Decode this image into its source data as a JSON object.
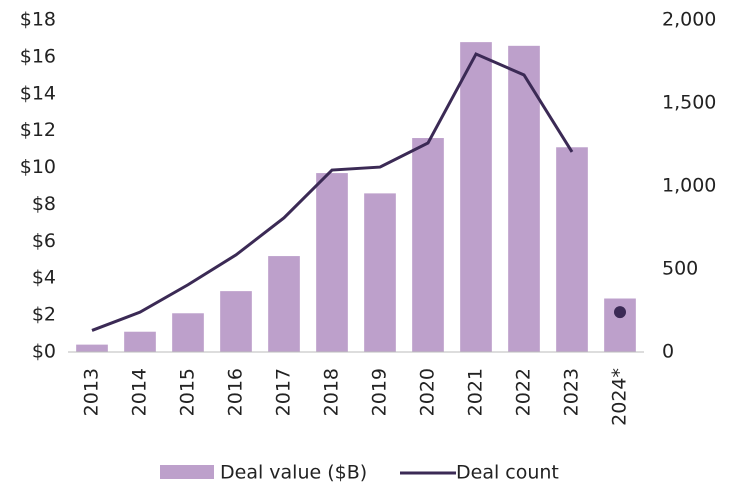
{
  "chart_data": {
    "type": "bar",
    "categories": [
      "2013",
      "2014",
      "2015",
      "2016",
      "2017",
      "2018",
      "2019",
      "2020",
      "2021",
      "2022",
      "2023",
      "2024*"
    ],
    "series": [
      {
        "name": "Deal value ($B)",
        "type": "bar",
        "color": "#bda0cb",
        "axis": "y",
        "values": [
          0.4,
          1.1,
          2.1,
          3.3,
          5.2,
          9.7,
          8.6,
          11.6,
          16.8,
          16.6,
          11.1,
          2.9
        ]
      },
      {
        "name": "Deal count",
        "type": "line",
        "color": "#3b2a55",
        "axis": "y2",
        "values": [
          130,
          240,
          405,
          585,
          808,
          1096,
          1114,
          1259,
          1795,
          1669,
          1205,
          null
        ],
        "marker_values": [
          null,
          null,
          null,
          null,
          null,
          null,
          null,
          null,
          null,
          null,
          null,
          240
        ]
      }
    ],
    "ylim": [
      0,
      18
    ],
    "yticks": [
      {
        "value": 0,
        "label": "$0"
      },
      {
        "value": 2,
        "label": "$2"
      },
      {
        "value": 4,
        "label": "$4"
      },
      {
        "value": 6,
        "label": "$6"
      },
      {
        "value": 8,
        "label": "$8"
      },
      {
        "value": 10,
        "label": "$10"
      },
      {
        "value": 12,
        "label": "$12"
      },
      {
        "value": 14,
        "label": "$14"
      },
      {
        "value": 16,
        "label": "$16"
      },
      {
        "value": 18,
        "label": "$18"
      }
    ],
    "y2lim": [
      0,
      2000
    ],
    "y2ticks": [
      0,
      500,
      {
        "value": 1000,
        "label": "1,000"
      },
      {
        "value": 1500,
        "label": "1,500"
      },
      {
        "value": 2000,
        "label": "2,000"
      }
    ],
    "legend": "bottom"
  }
}
